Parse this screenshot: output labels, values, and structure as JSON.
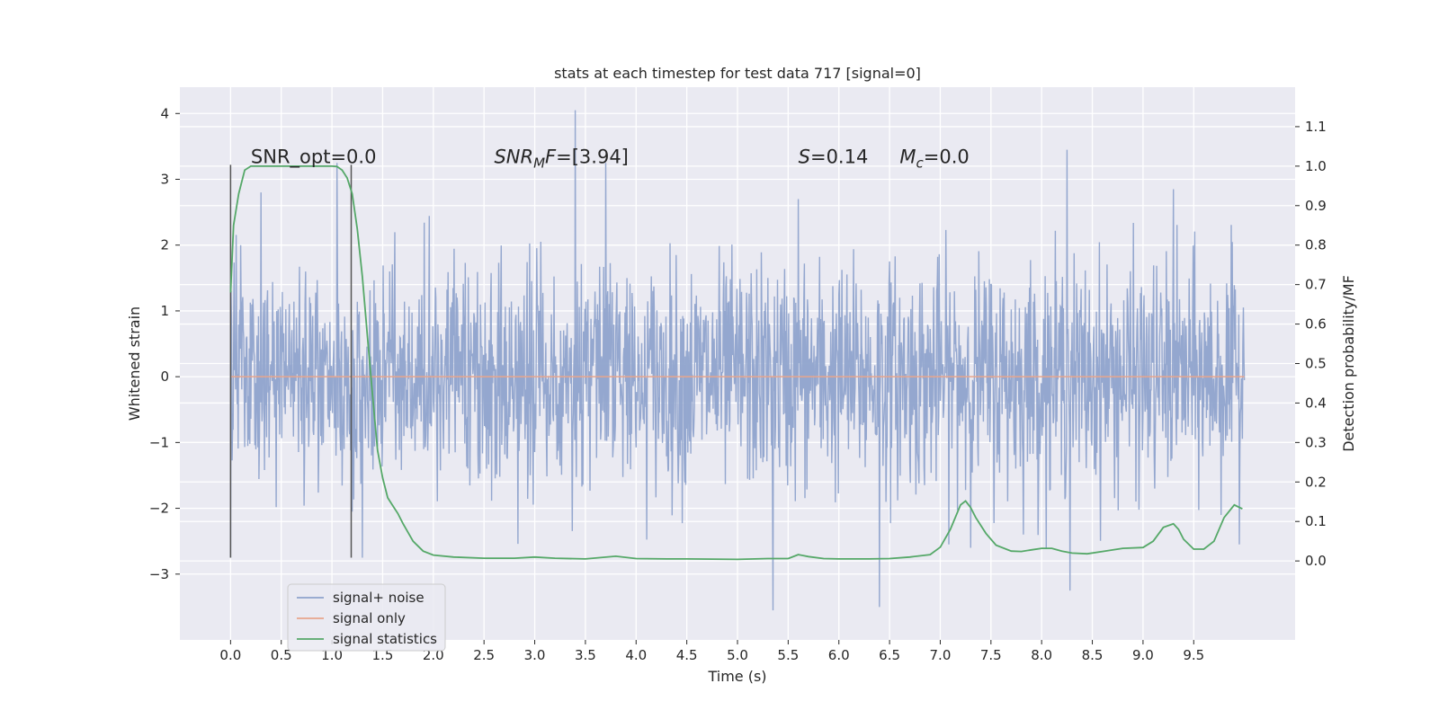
{
  "chart_data": {
    "type": "line",
    "title": "stats at each timestep for test data 717 [signal=0]",
    "xlabel": "Time (s)",
    "ylabel": "Whitened strain",
    "ylabel_right": "Detection probability/MF",
    "xlim": [
      -0.5,
      10.5
    ],
    "ylim": [
      -4.0,
      4.4
    ],
    "ylim_right": [
      -0.2,
      1.2
    ],
    "x_ticks": [
      "0.0",
      "0.5",
      "1.0",
      "1.5",
      "2.0",
      "2.5",
      "3.0",
      "3.5",
      "4.0",
      "4.5",
      "5.0",
      "5.5",
      "6.0",
      "6.5",
      "7.0",
      "7.5",
      "8.0",
      "8.5",
      "9.0",
      "9.5"
    ],
    "x_tick_values": [
      0.0,
      0.5,
      1.0,
      1.5,
      2.0,
      2.5,
      3.0,
      3.5,
      4.0,
      4.5,
      5.0,
      5.5,
      6.0,
      6.5,
      7.0,
      7.5,
      8.0,
      8.5,
      9.0,
      9.5
    ],
    "y_ticks": [
      "−3",
      "−2",
      "−1",
      "0",
      "1",
      "2",
      "3",
      "4"
    ],
    "y_tick_values": [
      -3,
      -2,
      -1,
      0,
      1,
      2,
      3,
      4
    ],
    "y_right_ticks": [
      "0.0",
      "0.1",
      "0.2",
      "0.3",
      "0.4",
      "0.5",
      "0.6",
      "0.7",
      "0.8",
      "0.9",
      "1.0",
      "1.1"
    ],
    "y_right_tick_values": [
      0.0,
      0.1,
      0.2,
      0.3,
      0.4,
      0.5,
      0.6,
      0.7,
      0.8,
      0.9,
      1.0,
      1.1
    ],
    "grid": true,
    "legend_position": "bottom-left",
    "series": [
      {
        "name": "signal+ noise",
        "color": "#8fa3cc",
        "axis": "left",
        "description_envelope": {
          "x": [
            0.0,
            10.0
          ],
          "dense_band": [
            -1.5,
            1.4
          ],
          "peak_extremes": [
            [
              0.0,
              -2.75
            ],
            [
              0.1,
              2.0
            ],
            [
              0.3,
              2.8
            ],
            [
              1.05,
              3.25
            ],
            [
              1.2,
              -2.05
            ],
            [
              1.3,
              -2.75
            ],
            [
              3.4,
              4.05
            ],
            [
              3.7,
              3.25
            ],
            [
              5.35,
              -3.55
            ],
            [
              5.6,
              2.7
            ],
            [
              6.4,
              -3.5
            ],
            [
              8.25,
              3.45
            ],
            [
              8.28,
              -3.25
            ],
            [
              9.3,
              2.85
            ],
            [
              9.95,
              -2.55
            ]
          ]
        }
      },
      {
        "name": "signal only",
        "color": "#e8a58c",
        "axis": "left",
        "x": [
          0.0,
          10.0
        ],
        "y": [
          0.0,
          0.0
        ]
      },
      {
        "name": "signal statistics",
        "color": "#55a868",
        "axis": "right",
        "x": [
          0.0,
          0.03,
          0.08,
          0.14,
          0.2,
          0.3,
          0.5,
          0.8,
          1.0,
          1.05,
          1.1,
          1.15,
          1.2,
          1.25,
          1.3,
          1.35,
          1.4,
          1.45,
          1.5,
          1.55,
          1.6,
          1.65,
          1.7,
          1.8,
          1.9,
          2.0,
          2.2,
          2.5,
          2.8,
          3.0,
          3.2,
          3.5,
          3.8,
          4.0,
          4.3,
          4.5,
          5.0,
          5.3,
          5.5,
          5.6,
          5.7,
          5.85,
          6.0,
          6.3,
          6.5,
          6.7,
          6.9,
          7.0,
          7.1,
          7.2,
          7.25,
          7.3,
          7.35,
          7.45,
          7.55,
          7.7,
          7.8,
          7.9,
          8.0,
          8.1,
          8.2,
          8.3,
          8.45,
          8.6,
          8.8,
          9.0,
          9.1,
          9.2,
          9.3,
          9.35,
          9.4,
          9.5,
          9.6,
          9.7,
          9.8,
          9.9,
          9.98
        ],
        "y": [
          0.68,
          0.85,
          0.93,
          0.99,
          1.0,
          1.0,
          1.0,
          1.0,
          1.0,
          0.999,
          0.99,
          0.97,
          0.93,
          0.84,
          0.72,
          0.57,
          0.42,
          0.28,
          0.21,
          0.16,
          0.14,
          0.12,
          0.095,
          0.05,
          0.025,
          0.015,
          0.01,
          0.007,
          0.007,
          0.01,
          0.007,
          0.005,
          0.012,
          0.006,
          0.005,
          0.005,
          0.004,
          0.006,
          0.006,
          0.016,
          0.011,
          0.006,
          0.005,
          0.005,
          0.006,
          0.01,
          0.016,
          0.035,
          0.08,
          0.142,
          0.152,
          0.135,
          0.11,
          0.07,
          0.04,
          0.025,
          0.024,
          0.028,
          0.032,
          0.032,
          0.025,
          0.02,
          0.018,
          0.024,
          0.032,
          0.034,
          0.05,
          0.085,
          0.094,
          0.08,
          0.055,
          0.03,
          0.03,
          0.05,
          0.11,
          0.142,
          0.132
        ]
      }
    ],
    "vlines": [
      {
        "x": 0.0,
        "ymin": -2.75,
        "ymax": 3.22,
        "color": "#555555"
      },
      {
        "x": 1.19,
        "ymin": -2.75,
        "ymax": 3.22,
        "color": "#555555"
      }
    ],
    "annotations": [
      {
        "text": "SNR_opt=0.0",
        "x": 0.2,
        "y": 3.22
      },
      {
        "text_parts": [
          "SNR",
          "M",
          "F=[3.94]"
        ],
        "x": 2.6,
        "y": 3.22
      },
      {
        "text_parts": [
          "S",
          "=0.14"
        ],
        "x": 5.6,
        "y": 3.22
      },
      {
        "text_parts": [
          "M",
          "c",
          "=0.0"
        ],
        "x": 6.6,
        "y": 3.22
      }
    ]
  }
}
